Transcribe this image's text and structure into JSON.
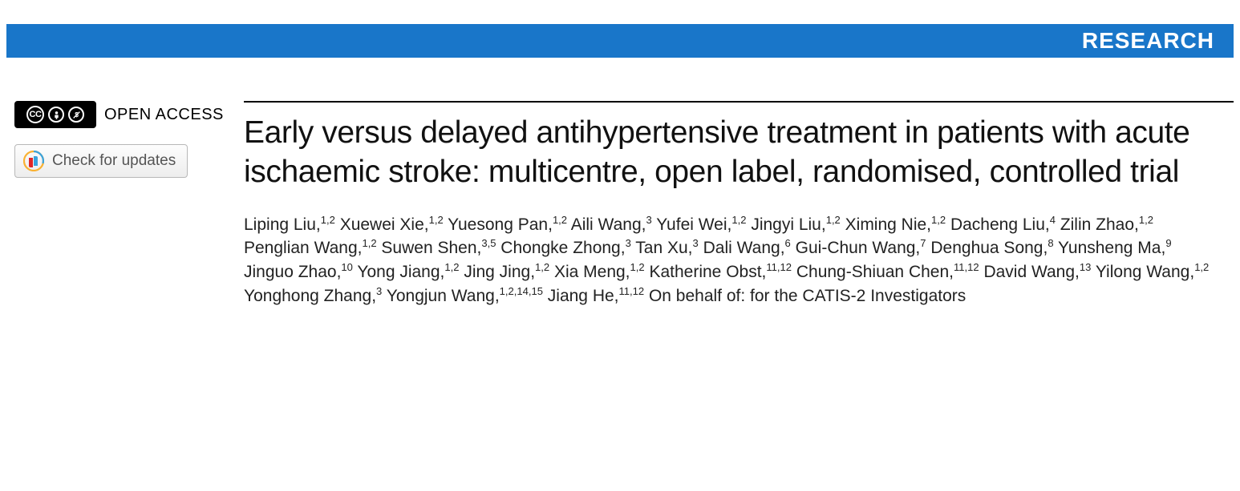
{
  "banner": {
    "label": "RESEARCH",
    "background_color": "#1976c9",
    "text_color": "#ffffff"
  },
  "sidebar": {
    "open_access_label": "OPEN ACCESS",
    "cc_text": "CC",
    "check_updates_label": "Check for updates"
  },
  "article": {
    "title": "Early versus delayed antihypertensive treatment in patients with acute ischaemic stroke: multicentre, open label, randomised, controlled trial",
    "authors": [
      {
        "name": "Liping Liu",
        "affil": "1,2"
      },
      {
        "name": "Xuewei Xie",
        "affil": "1,2"
      },
      {
        "name": "Yuesong Pan",
        "affil": "1,2"
      },
      {
        "name": "Aili Wang",
        "affil": "3"
      },
      {
        "name": "Yufei Wei",
        "affil": "1,2"
      },
      {
        "name": "Jingyi Liu",
        "affil": "1,2"
      },
      {
        "name": "Ximing Nie",
        "affil": "1,2"
      },
      {
        "name": "Dacheng Liu",
        "affil": "4"
      },
      {
        "name": "Zilin Zhao",
        "affil": "1,2"
      },
      {
        "name": "Penglian Wang",
        "affil": "1,2"
      },
      {
        "name": "Suwen Shen",
        "affil": "3,5"
      },
      {
        "name": "Chongke Zhong",
        "affil": "3"
      },
      {
        "name": "Tan Xu",
        "affil": "3"
      },
      {
        "name": "Dali Wang",
        "affil": "6"
      },
      {
        "name": "Gui-Chun Wang",
        "affil": "7"
      },
      {
        "name": "Denghua Song",
        "affil": "8"
      },
      {
        "name": "Yunsheng Ma",
        "affil": "9"
      },
      {
        "name": "Jinguo Zhao",
        "affil": "10"
      },
      {
        "name": "Yong Jiang",
        "affil": "1,2"
      },
      {
        "name": "Jing Jing",
        "affil": "1,2"
      },
      {
        "name": "Xia Meng",
        "affil": "1,2"
      },
      {
        "name": "Katherine Obst",
        "affil": "11,12"
      },
      {
        "name": "Chung-Shiuan Chen",
        "affil": "11,12"
      },
      {
        "name": "David Wang",
        "affil": "13"
      },
      {
        "name": "Yilong Wang",
        "affil": "1,2"
      },
      {
        "name": "Yonghong Zhang",
        "affil": "3"
      },
      {
        "name": "Yongjun Wang",
        "affil": "1,2,14,15"
      },
      {
        "name": "Jiang He",
        "affil": "11,12"
      }
    ],
    "on_behalf": "On behalf of: for the CATIS-2 Investigators"
  },
  "colors": {
    "rule": "#000000",
    "text": "#111111",
    "crossmark_ring": "#f9b233",
    "crossmark_inner1": "#e02626",
    "crossmark_inner2": "#3aa3dd"
  }
}
